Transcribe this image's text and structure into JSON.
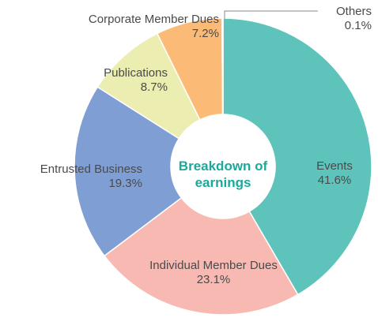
{
  "chart_data": {
    "type": "donut",
    "title": "Breakdown of earnings",
    "categories": [
      "Events",
      "Individual Member Dues",
      "Entrusted Business",
      "Publications",
      "Corporate Member Dues",
      "Others"
    ],
    "values": [
      41.6,
      23.1,
      19.3,
      8.7,
      7.2,
      0.1
    ],
    "value_labels": [
      "41.6%",
      "23.1%",
      "19.3%",
      "8.7%",
      "7.2%",
      "0.1%"
    ],
    "colors": [
      "#5ec4bb",
      "#f7b9b2",
      "#7f9fd4",
      "#ecedb0",
      "#fbbb76",
      "#b0c6d8"
    ]
  }
}
